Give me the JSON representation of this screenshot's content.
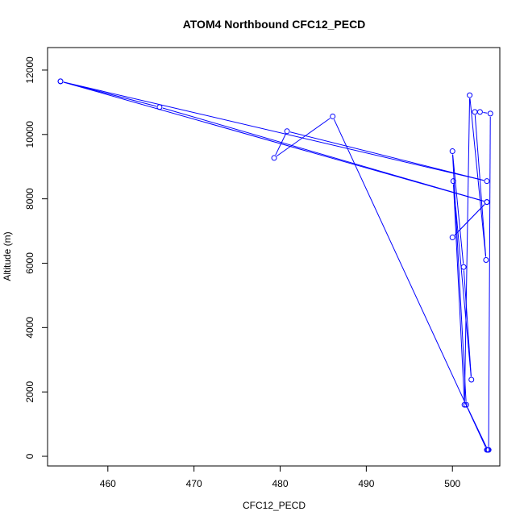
{
  "chart_data": {
    "type": "line",
    "title": "ATOM4 Northbound CFC12_PECD",
    "xlabel": "CFC12_PECD",
    "ylabel": "Altitude (m)",
    "xlim": [
      453,
      505.5
    ],
    "ylim": [
      -300,
      12700
    ],
    "xticks": [
      460,
      470,
      480,
      490,
      500
    ],
    "yticks": [
      0,
      2000,
      4000,
      6000,
      8000,
      10000,
      12000
    ],
    "grid": false,
    "legend": "none",
    "colors": {
      "series": "#0000ff",
      "axis": "#000000"
    },
    "series": [
      {
        "marker": "open-circle",
        "points": [
          [
            454.5,
            11650
          ],
          [
            466.0,
            10850
          ],
          [
            504.0,
            7900
          ],
          [
            500.0,
            6800
          ],
          [
            504.0,
            7900
          ],
          [
            454.5,
            11650
          ],
          [
            504.0,
            8550
          ],
          [
            480.8,
            10100
          ],
          [
            479.3,
            9270
          ],
          [
            486.1,
            10560
          ],
          [
            504.0,
            200
          ],
          [
            504.2,
            200
          ],
          [
            504.4,
            10650
          ],
          [
            503.2,
            10700
          ],
          [
            502.6,
            10700
          ],
          [
            503.9,
            6100
          ],
          [
            502.0,
            11220
          ],
          [
            501.4,
            1600
          ],
          [
            500.1,
            8550
          ],
          [
            502.2,
            2380
          ],
          [
            501.3,
            5880
          ],
          [
            500.0,
            9480
          ],
          [
            501.6,
            1600
          ],
          [
            504.1,
            200
          ]
        ]
      }
    ]
  }
}
